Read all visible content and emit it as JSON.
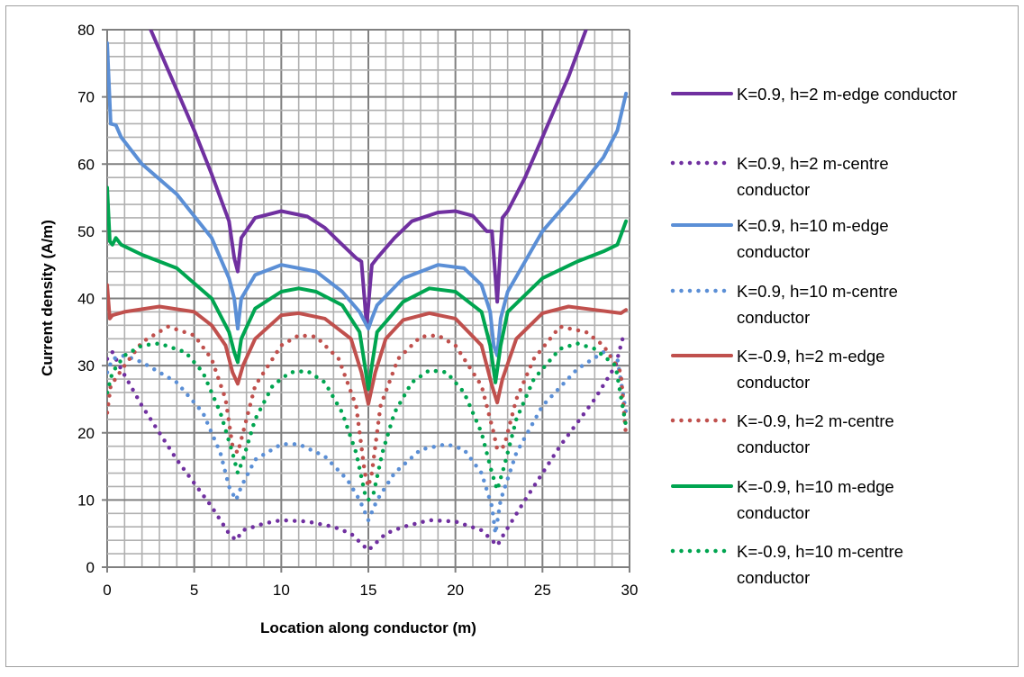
{
  "chart_data": {
    "type": "line",
    "title": "",
    "xlabel": "Location along conductor (m)",
    "ylabel": "Current density (A/m)",
    "xlim": [
      0,
      30
    ],
    "ylim": [
      0,
      80
    ],
    "xticks": [
      0,
      5,
      10,
      15,
      20,
      25,
      30
    ],
    "yticks": [
      0,
      10,
      20,
      30,
      40,
      50,
      60,
      70,
      80
    ],
    "x_minor_step": 1,
    "y_minor_step": 2,
    "grid": true,
    "legend_position": "right",
    "series": [
      {
        "name": "K=0.9, h=2 m-edge conductor",
        "legend_lines": [
          "K=0.9, h=2 m-edge conductor"
        ],
        "color": "#7030A0",
        "style": "solid",
        "points": [
          [
            2.5,
            80
          ],
          [
            3.5,
            74
          ],
          [
            5,
            65
          ],
          [
            6,
            58.5
          ],
          [
            7,
            51.5
          ],
          [
            7.3,
            46
          ],
          [
            7.5,
            44
          ],
          [
            7.7,
            49
          ],
          [
            8.5,
            52
          ],
          [
            10,
            53
          ],
          [
            11.5,
            52.2
          ],
          [
            12.5,
            50.5
          ],
          [
            13.5,
            48
          ],
          [
            14.3,
            46
          ],
          [
            14.6,
            45.5
          ],
          [
            14.9,
            36
          ],
          [
            15.2,
            45
          ],
          [
            15.5,
            46
          ],
          [
            16.5,
            49
          ],
          [
            17.5,
            51.5
          ],
          [
            19,
            52.8
          ],
          [
            20,
            53
          ],
          [
            21,
            52.3
          ],
          [
            21.8,
            50
          ],
          [
            22.1,
            50
          ],
          [
            22.4,
            39.5
          ],
          [
            22.7,
            52
          ],
          [
            23,
            53
          ],
          [
            24,
            58
          ],
          [
            25,
            64
          ],
          [
            26.5,
            73
          ],
          [
            27.5,
            80
          ]
        ]
      },
      {
        "name": "K=0.9, h=2 m-centre conductor",
        "legend_lines": [
          "K=0.9, h=2 m-centre",
          "conductor"
        ],
        "color": "#7030A0",
        "style": "dotted",
        "points": [
          [
            0,
            31
          ],
          [
            0.3,
            32
          ],
          [
            0.8,
            29.5
          ],
          [
            2,
            24
          ],
          [
            4,
            16
          ],
          [
            6,
            9
          ],
          [
            7,
            5
          ],
          [
            7.4,
            4
          ],
          [
            7.8,
            5.5
          ],
          [
            9,
            6.5
          ],
          [
            10,
            7
          ],
          [
            11.5,
            6.8
          ],
          [
            13,
            6
          ],
          [
            14,
            5
          ],
          [
            14.6,
            3.5
          ],
          [
            15,
            2.5
          ],
          [
            15.4,
            3.5
          ],
          [
            16,
            5
          ],
          [
            17,
            6
          ],
          [
            18.5,
            7
          ],
          [
            20,
            6.8
          ],
          [
            21.5,
            5.5
          ],
          [
            22.1,
            4
          ],
          [
            22.4,
            3.2
          ],
          [
            22.8,
            5
          ],
          [
            24,
            10
          ],
          [
            26,
            18
          ],
          [
            28,
            25
          ],
          [
            29.2,
            30
          ],
          [
            29.6,
            34
          ],
          [
            29.8,
            33.5
          ]
        ]
      },
      {
        "name": "K=0.9, h=10 m-edge conductor",
        "legend_lines": [
          "K=0.9, h=10 m-edge",
          "conductor"
        ],
        "color": "#5B8FD6",
        "style": "solid",
        "points": [
          [
            0,
            78
          ],
          [
            0.2,
            66
          ],
          [
            0.5,
            65.8
          ],
          [
            0.8,
            64
          ],
          [
            2,
            60
          ],
          [
            4,
            55.5
          ],
          [
            6,
            49
          ],
          [
            7,
            43
          ],
          [
            7.3,
            40
          ],
          [
            7.5,
            35.5
          ],
          [
            7.7,
            40
          ],
          [
            8.5,
            43.5
          ],
          [
            10,
            45
          ],
          [
            12,
            44
          ],
          [
            13.5,
            41
          ],
          [
            14.5,
            38
          ],
          [
            14.8,
            36.5
          ],
          [
            15,
            35.5
          ],
          [
            15.2,
            37
          ],
          [
            15.5,
            39
          ],
          [
            17,
            43
          ],
          [
            19,
            45
          ],
          [
            20.5,
            44.5
          ],
          [
            21.5,
            42
          ],
          [
            22,
            38
          ],
          [
            22.2,
            33
          ],
          [
            22.4,
            31.5
          ],
          [
            22.6,
            37
          ],
          [
            23,
            41
          ],
          [
            25,
            50
          ],
          [
            27,
            56
          ],
          [
            28.5,
            61
          ],
          [
            29.3,
            65
          ],
          [
            29.8,
            70.5
          ]
        ]
      },
      {
        "name": "K=0.9, h=10 m-centre conductor",
        "legend_lines": [
          "K=0.9, h=10 m-centre",
          "conductor"
        ],
        "color": "#5B8FD6",
        "style": "dotted",
        "points": [
          [
            0,
            29
          ],
          [
            0.3,
            31
          ],
          [
            1,
            31.5
          ],
          [
            2,
            30.5
          ],
          [
            4,
            27.5
          ],
          [
            5.5,
            23
          ],
          [
            6.5,
            17
          ],
          [
            7,
            12
          ],
          [
            7.4,
            10
          ],
          [
            7.7,
            12
          ],
          [
            8.5,
            16
          ],
          [
            10,
            18.3
          ],
          [
            11,
            18.3
          ],
          [
            12.5,
            16.5
          ],
          [
            13.8,
            13
          ],
          [
            14.5,
            10
          ],
          [
            15,
            7
          ],
          [
            15.5,
            10
          ],
          [
            16.5,
            14
          ],
          [
            18,
            17.5
          ],
          [
            19.5,
            18.3
          ],
          [
            20.5,
            17.5
          ],
          [
            21.5,
            14
          ],
          [
            22.1,
            9
          ],
          [
            22.3,
            5
          ],
          [
            22.6,
            10
          ],
          [
            23.5,
            17
          ],
          [
            25,
            24
          ],
          [
            27,
            29.5
          ],
          [
            28.5,
            32
          ],
          [
            29.3,
            31
          ],
          [
            29.8,
            23
          ]
        ]
      },
      {
        "name": "K=-0.9, h=2 m-edge conductor",
        "legend_lines": [
          "K=-0.9, h=2 m-edge",
          "conductor"
        ],
        "color": "#C0504D",
        "style": "solid",
        "points": [
          [
            0,
            42
          ],
          [
            0.15,
            37
          ],
          [
            0.3,
            37.5
          ],
          [
            1,
            38
          ],
          [
            3,
            38.8
          ],
          [
            5,
            38
          ],
          [
            6,
            36
          ],
          [
            6.8,
            33
          ],
          [
            7.2,
            29
          ],
          [
            7.5,
            27.3
          ],
          [
            7.8,
            30
          ],
          [
            8.5,
            34
          ],
          [
            10,
            37.5
          ],
          [
            11,
            37.8
          ],
          [
            12.5,
            37
          ],
          [
            14,
            34
          ],
          [
            14.6,
            29
          ],
          [
            15,
            24.3
          ],
          [
            15.4,
            29
          ],
          [
            16,
            34
          ],
          [
            17,
            36.8
          ],
          [
            18.5,
            37.8
          ],
          [
            20,
            37
          ],
          [
            21.5,
            33
          ],
          [
            22.1,
            27
          ],
          [
            22.4,
            24.5
          ],
          [
            22.7,
            28
          ],
          [
            23.5,
            34
          ],
          [
            25,
            37.8
          ],
          [
            26.5,
            38.8
          ],
          [
            28,
            38.3
          ],
          [
            29.5,
            37.8
          ],
          [
            29.8,
            38.3
          ]
        ]
      },
      {
        "name": "K=-0.9, h=2 m-centre conductor",
        "legend_lines": [
          "K=-0.9, h=2 m-centre",
          "conductor"
        ],
        "color": "#C0504D",
        "style": "dotted",
        "points": [
          [
            0,
            23
          ],
          [
            0.2,
            27
          ],
          [
            1,
            30
          ],
          [
            2,
            33.5
          ],
          [
            3.5,
            35.8
          ],
          [
            5,
            34.5
          ],
          [
            6,
            31
          ],
          [
            6.8,
            25
          ],
          [
            7.2,
            18
          ],
          [
            7.5,
            17
          ],
          [
            7.8,
            20
          ],
          [
            8.5,
            27
          ],
          [
            10,
            33
          ],
          [
            11,
            34.5
          ],
          [
            12,
            34.3
          ],
          [
            13.3,
            31
          ],
          [
            14.3,
            24
          ],
          [
            14.8,
            14
          ],
          [
            15,
            12
          ],
          [
            15.2,
            14
          ],
          [
            15.7,
            24
          ],
          [
            16.7,
            31
          ],
          [
            18,
            34.3
          ],
          [
            19,
            34.5
          ],
          [
            20,
            33
          ],
          [
            21.5,
            27
          ],
          [
            22.2,
            20
          ],
          [
            22.4,
            17.5
          ],
          [
            22.8,
            18
          ],
          [
            23.5,
            25
          ],
          [
            24.5,
            31
          ],
          [
            26,
            35.8
          ],
          [
            27.5,
            35
          ],
          [
            28.5,
            33
          ],
          [
            29.5,
            29
          ],
          [
            29.8,
            19.5
          ]
        ]
      },
      {
        "name": "K=-0.9, h=10 m-edge conductor",
        "legend_lines": [
          "K=-0.9, h=10 m-edge",
          "conductor"
        ],
        "color": "#00A550",
        "style": "solid",
        "points": [
          [
            0,
            56.5
          ],
          [
            0.15,
            48.5
          ],
          [
            0.3,
            48
          ],
          [
            0.5,
            49
          ],
          [
            0.8,
            48
          ],
          [
            2,
            46.5
          ],
          [
            4,
            44.5
          ],
          [
            6,
            40
          ],
          [
            7,
            35
          ],
          [
            7.3,
            32
          ],
          [
            7.5,
            30.5
          ],
          [
            7.7,
            34
          ],
          [
            8.5,
            38.5
          ],
          [
            10,
            41
          ],
          [
            11,
            41.5
          ],
          [
            12,
            41
          ],
          [
            13.5,
            39
          ],
          [
            14.5,
            35
          ],
          [
            14.8,
            30
          ],
          [
            15,
            26.5
          ],
          [
            15.2,
            30
          ],
          [
            15.5,
            35
          ],
          [
            17,
            39.5
          ],
          [
            18.5,
            41.5
          ],
          [
            20,
            41
          ],
          [
            21.5,
            38
          ],
          [
            22,
            33
          ],
          [
            22.3,
            27.5
          ],
          [
            22.6,
            33
          ],
          [
            23,
            38
          ],
          [
            25,
            43
          ],
          [
            27,
            45.5
          ],
          [
            28.5,
            47
          ],
          [
            29.3,
            48
          ],
          [
            29.8,
            51.5
          ]
        ]
      },
      {
        "name": "K=-0.9, h=10 m-centre conductor",
        "legend_lines": [
          "K=-0.9, h=10 m-centre",
          "conductor"
        ],
        "color": "#00A550",
        "style": "dotted",
        "points": [
          [
            0,
            26
          ],
          [
            0.3,
            29
          ],
          [
            1,
            31.5
          ],
          [
            2,
            33
          ],
          [
            3,
            33.3
          ],
          [
            4.5,
            32
          ],
          [
            5.5,
            29
          ],
          [
            6.5,
            23
          ],
          [
            7.2,
            17
          ],
          [
            7.5,
            14
          ],
          [
            7.8,
            16
          ],
          [
            8.5,
            22
          ],
          [
            9.5,
            27
          ],
          [
            10.5,
            29
          ],
          [
            11.5,
            29.2
          ],
          [
            12.5,
            27.5
          ],
          [
            13.5,
            23
          ],
          [
            14.3,
            17
          ],
          [
            14.8,
            11
          ],
          [
            15,
            10
          ],
          [
            15.3,
            11
          ],
          [
            15.8,
            17
          ],
          [
            16.5,
            23
          ],
          [
            17.5,
            27.5
          ],
          [
            18.5,
            29.3
          ],
          [
            19.5,
            29
          ],
          [
            20.5,
            26
          ],
          [
            21.5,
            20
          ],
          [
            22.1,
            14
          ],
          [
            22.4,
            11.5
          ],
          [
            22.8,
            15
          ],
          [
            23.5,
            22
          ],
          [
            24.5,
            28
          ],
          [
            26,
            32.5
          ],
          [
            27,
            33.3
          ],
          [
            28,
            32.5
          ],
          [
            29.2,
            30
          ],
          [
            29.8,
            21
          ]
        ]
      }
    ]
  }
}
